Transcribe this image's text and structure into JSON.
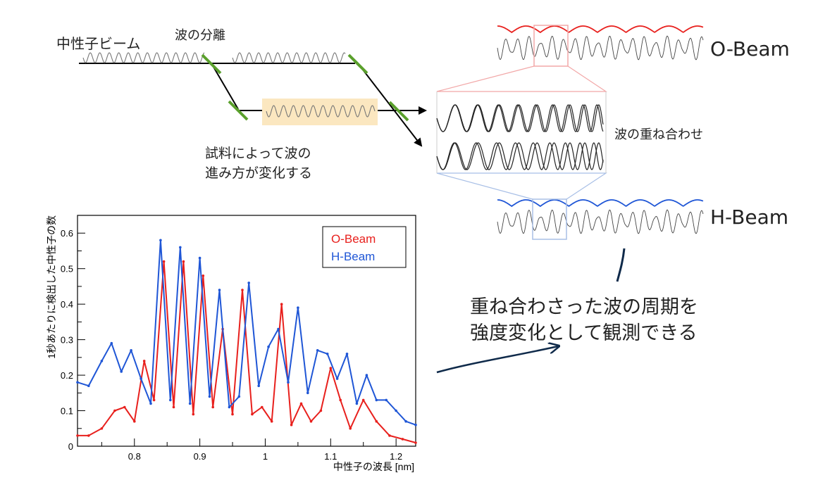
{
  "diagram": {
    "beam_label": "中性子ビーム",
    "split_label": "波の分離",
    "sample_label_line1": "試料によって波の",
    "sample_label_line2": "進み方が変化する",
    "superposition_label": "波の重ね合わせ",
    "o_beam_label": "O-Beam",
    "h_beam_label": "H-Beam",
    "observe_label_line1": "重ね合わさった波の周期を",
    "observe_label_line2": "強度変化として観測できる",
    "colors": {
      "o_beam": "#e8201d",
      "h_beam": "#1f56d6",
      "mirror": "#5aa02c",
      "sample_box": "#fbe7c0",
      "arrow": "#0f2a4a"
    }
  },
  "chart_data": {
    "type": "line",
    "xlabel": "中性子の波長 [nm]",
    "ylabel": "1秒あたりに検出した中性子の数",
    "xlim": [
      0.713,
      1.23
    ],
    "ylim": [
      0,
      0.65
    ],
    "xticks": [
      "0.8",
      "0.9",
      "1",
      "1.1",
      "1.2"
    ],
    "yticks": [
      "0",
      "0.1",
      "0.2",
      "0.3",
      "0.4",
      "0.5",
      "0.6"
    ],
    "legend_position": "top-right",
    "series": [
      {
        "name": "O-Beam",
        "color": "#e8201d",
        "x": [
          0.713,
          0.73,
          0.75,
          0.77,
          0.785,
          0.8,
          0.815,
          0.83,
          0.845,
          0.86,
          0.875,
          0.89,
          0.905,
          0.92,
          0.935,
          0.95,
          0.965,
          0.98,
          0.995,
          1.01,
          1.025,
          1.04,
          1.055,
          1.07,
          1.085,
          1.1,
          1.115,
          1.13,
          1.15,
          1.17,
          1.19,
          1.21,
          1.23
        ],
        "y": [
          0.03,
          0.03,
          0.05,
          0.1,
          0.11,
          0.07,
          0.24,
          0.13,
          0.52,
          0.11,
          0.52,
          0.09,
          0.48,
          0.11,
          0.33,
          0.09,
          0.44,
          0.09,
          0.11,
          0.07,
          0.4,
          0.06,
          0.12,
          0.07,
          0.1,
          0.22,
          0.13,
          0.05,
          0.13,
          0.07,
          0.03,
          0.02,
          0.01
        ]
      },
      {
        "name": "H-Beam",
        "color": "#1f56d6",
        "x": [
          0.713,
          0.73,
          0.75,
          0.765,
          0.78,
          0.795,
          0.81,
          0.825,
          0.84,
          0.855,
          0.87,
          0.885,
          0.9,
          0.915,
          0.93,
          0.945,
          0.96,
          0.975,
          0.99,
          1.005,
          1.02,
          1.035,
          1.05,
          1.065,
          1.08,
          1.095,
          1.11,
          1.125,
          1.14,
          1.155,
          1.17,
          1.185,
          1.2,
          1.215,
          1.23
        ],
        "y": [
          0.18,
          0.17,
          0.24,
          0.29,
          0.21,
          0.27,
          0.19,
          0.12,
          0.58,
          0.13,
          0.56,
          0.12,
          0.53,
          0.14,
          0.44,
          0.11,
          0.14,
          0.46,
          0.17,
          0.28,
          0.33,
          0.18,
          0.39,
          0.15,
          0.27,
          0.26,
          0.19,
          0.26,
          0.12,
          0.2,
          0.13,
          0.13,
          0.1,
          0.07,
          0.06
        ]
      }
    ]
  }
}
